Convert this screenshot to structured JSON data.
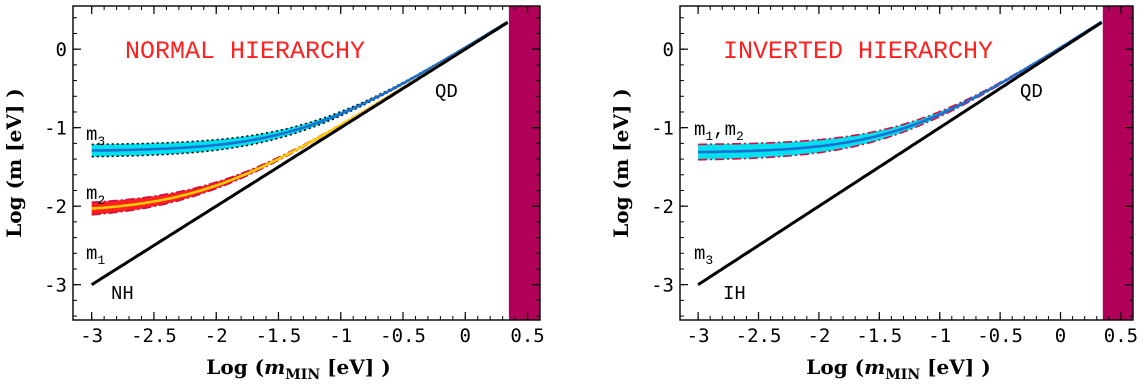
{
  "chart_data": [
    {
      "type": "line",
      "title": "NORMAL HIERARCHY",
      "xlabel": "Log (m_MIN [eV] )",
      "xlabel_parts": {
        "pre": "Log (",
        "var": "m",
        "sub": "MIN",
        "post": " [eV] )"
      },
      "ylabel": "Log (m [eV] )",
      "xlim": [
        -3.15,
        0.6
      ],
      "ylim": [
        -3.45,
        0.55
      ],
      "x_ticks": [
        "-3",
        "-2.5",
        "-2",
        "-1.5",
        "-1",
        "-0.5",
        "0",
        "0.5"
      ],
      "y_ticks": [
        "0",
        "-1",
        "-2",
        "-3"
      ],
      "excluded_band": {
        "x_from": 0.35,
        "x_to": 0.6,
        "color": "#b0005a"
      },
      "annotations": {
        "qd": "QD",
        "hier": "NH",
        "upper": "m",
        "upper_sub": "3",
        "middle": "m",
        "middle_sub": "2",
        "lower": "m",
        "lower_sub": "1"
      },
      "series": [
        {
          "name": "m3",
          "color": "#00e0f0",
          "line_color": "#1a6fd0",
          "offset": -1.3,
          "width": 0.08
        },
        {
          "name": "m2",
          "color": "#ff2020",
          "line_color": "#ffcc00",
          "offset": -2.08,
          "width": 0.09
        },
        {
          "name": "m1",
          "color": "#000000",
          "line_color": "#000000",
          "offset": null,
          "width": 0
        }
      ]
    },
    {
      "type": "line",
      "title": "INVERTED HIERARCHY",
      "xlabel": "Log (m_MIN [eV] )",
      "xlabel_parts": {
        "pre": "Log (",
        "var": "m",
        "sub": "MIN",
        "post": " [eV] )"
      },
      "ylabel": "Log (m [eV] )",
      "xlim": [
        -3.15,
        0.6
      ],
      "ylim": [
        -3.45,
        0.55
      ],
      "x_ticks": [
        "-3",
        "-2.5",
        "-2",
        "-1.5",
        "-1",
        "-0.5",
        "0",
        "0.5"
      ],
      "y_ticks": [
        "0",
        "-1",
        "-2",
        "-3"
      ],
      "excluded_band": {
        "x_from": 0.35,
        "x_to": 0.6,
        "color": "#b0005a"
      },
      "annotations": {
        "qd": "QD",
        "hier": "IH",
        "upper": "m",
        "upper_sub": "1",
        "upper_extra": ",m",
        "upper_extra_sub": "2",
        "lower": "m",
        "lower_sub": "3"
      },
      "series": [
        {
          "name": "m1,m2",
          "color": "#00e0f0",
          "line_color": "#1a6fd0",
          "offset": -1.32,
          "width": 0.1
        },
        {
          "name": "m3",
          "color": "#000000",
          "line_color": "#000000",
          "offset": null,
          "width": 0
        }
      ]
    }
  ]
}
